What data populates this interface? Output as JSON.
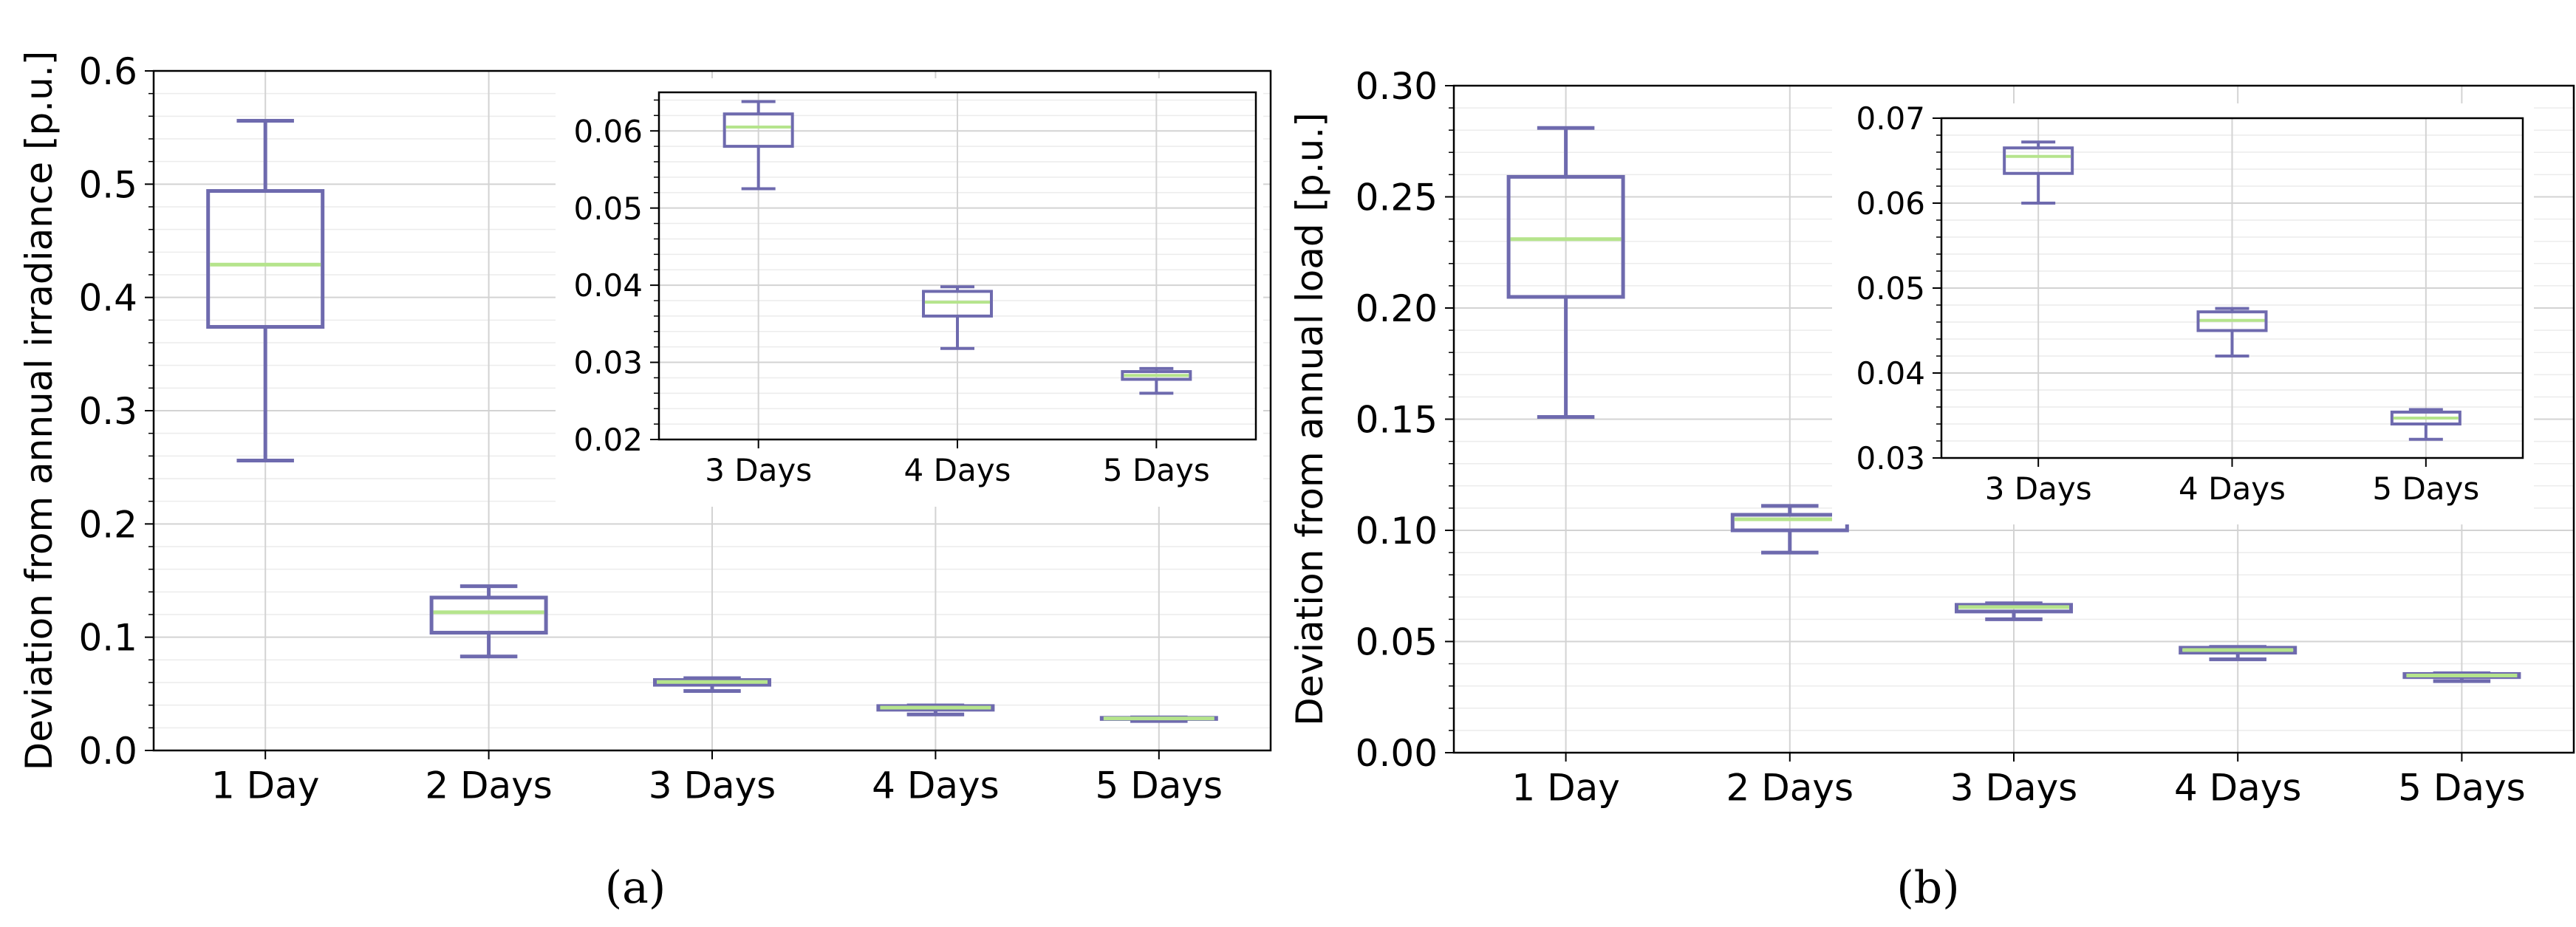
{
  "chart_data": [
    {
      "type": "box",
      "panel_label": "(a)",
      "ylabel": "Deviation from annual irradiance [p.u.]",
      "xlabel": "",
      "categories": [
        "1 Day",
        "2 Days",
        "3 Days",
        "4 Days",
        "5 Days"
      ],
      "ylim": [
        0,
        0.6
      ],
      "yticks": [
        0.0,
        0.1,
        0.2,
        0.3,
        0.4,
        0.5,
        0.6
      ],
      "ytick_labels": [
        "0.0",
        "0.1",
        "0.2",
        "0.3",
        "0.4",
        "0.5",
        "0.6"
      ],
      "grid": true,
      "boxes": [
        {
          "whisker_low": 0.256,
          "q1": 0.374,
          "median": 0.429,
          "q3": 0.494,
          "whisker_high": 0.556
        },
        {
          "whisker_low": 0.083,
          "q1": 0.104,
          "median": 0.122,
          "q3": 0.135,
          "whisker_high": 0.145
        },
        {
          "whisker_low": 0.0525,
          "q1": 0.058,
          "median": 0.0605,
          "q3": 0.0622,
          "whisker_high": 0.0638
        },
        {
          "whisker_low": 0.0318,
          "q1": 0.036,
          "median": 0.0378,
          "q3": 0.0392,
          "whisker_high": 0.0398
        },
        {
          "whisker_low": 0.026,
          "q1": 0.0278,
          "median": 0.0283,
          "q3": 0.0288,
          "whisker_high": 0.0292
        }
      ],
      "inset": {
        "categories": [
          "3 Days",
          "4 Days",
          "5 Days"
        ],
        "ylim": [
          0.02,
          0.065
        ],
        "yticks": [
          0.02,
          0.03,
          0.04,
          0.05,
          0.06
        ],
        "ytick_labels": [
          "0.02",
          "0.03",
          "0.04",
          "0.05",
          "0.06"
        ],
        "boxes": [
          {
            "whisker_low": 0.0525,
            "q1": 0.058,
            "median": 0.0605,
            "q3": 0.0622,
            "whisker_high": 0.0638
          },
          {
            "whisker_low": 0.0318,
            "q1": 0.036,
            "median": 0.0378,
            "q3": 0.0392,
            "whisker_high": 0.0398
          },
          {
            "whisker_low": 0.026,
            "q1": 0.0278,
            "median": 0.0283,
            "q3": 0.0288,
            "whisker_high": 0.0292
          }
        ]
      }
    },
    {
      "type": "box",
      "panel_label": "(b)",
      "ylabel": "Deviation from annual load [p.u.]",
      "xlabel": "",
      "categories": [
        "1 Day",
        "2 Days",
        "3 Days",
        "4 Days",
        "5 Days"
      ],
      "ylim": [
        0,
        0.3
      ],
      "yticks": [
        0.0,
        0.05,
        0.1,
        0.15,
        0.2,
        0.25,
        0.3
      ],
      "ytick_labels": [
        "0.00",
        "0.05",
        "0.10",
        "0.15",
        "0.20",
        "0.25",
        "0.30"
      ],
      "grid": true,
      "boxes": [
        {
          "whisker_low": 0.151,
          "q1": 0.205,
          "median": 0.231,
          "q3": 0.259,
          "whisker_high": 0.281
        },
        {
          "whisker_low": 0.09,
          "q1": 0.1,
          "median": 0.105,
          "q3": 0.107,
          "whisker_high": 0.111
        },
        {
          "whisker_low": 0.06,
          "q1": 0.0635,
          "median": 0.0655,
          "q3": 0.0665,
          "whisker_high": 0.0672
        },
        {
          "whisker_low": 0.042,
          "q1": 0.045,
          "median": 0.0462,
          "q3": 0.0472,
          "whisker_high": 0.0476
        },
        {
          "whisker_low": 0.0322,
          "q1": 0.034,
          "median": 0.0347,
          "q3": 0.0354,
          "whisker_high": 0.0357
        }
      ],
      "inset": {
        "categories": [
          "3 Days",
          "4 Days",
          "5 Days"
        ],
        "ylim": [
          0.03,
          0.07
        ],
        "yticks": [
          0.03,
          0.04,
          0.05,
          0.06,
          0.07
        ],
        "ytick_labels": [
          "0.03",
          "0.04",
          "0.05",
          "0.06",
          "0.07"
        ],
        "boxes": [
          {
            "whisker_low": 0.06,
            "q1": 0.0635,
            "median": 0.0655,
            "q3": 0.0665,
            "whisker_high": 0.0672
          },
          {
            "whisker_low": 0.042,
            "q1": 0.045,
            "median": 0.0462,
            "q3": 0.0472,
            "whisker_high": 0.0476
          },
          {
            "whisker_low": 0.0322,
            "q1": 0.034,
            "median": 0.0347,
            "q3": 0.0354,
            "whisker_high": 0.0357
          }
        ]
      }
    }
  ],
  "colors": {
    "box": "#6e6aae",
    "median": "#b5e48c",
    "major_grid": "#d3d3d3",
    "minor_grid": "#ececec",
    "axis": "#000000"
  }
}
